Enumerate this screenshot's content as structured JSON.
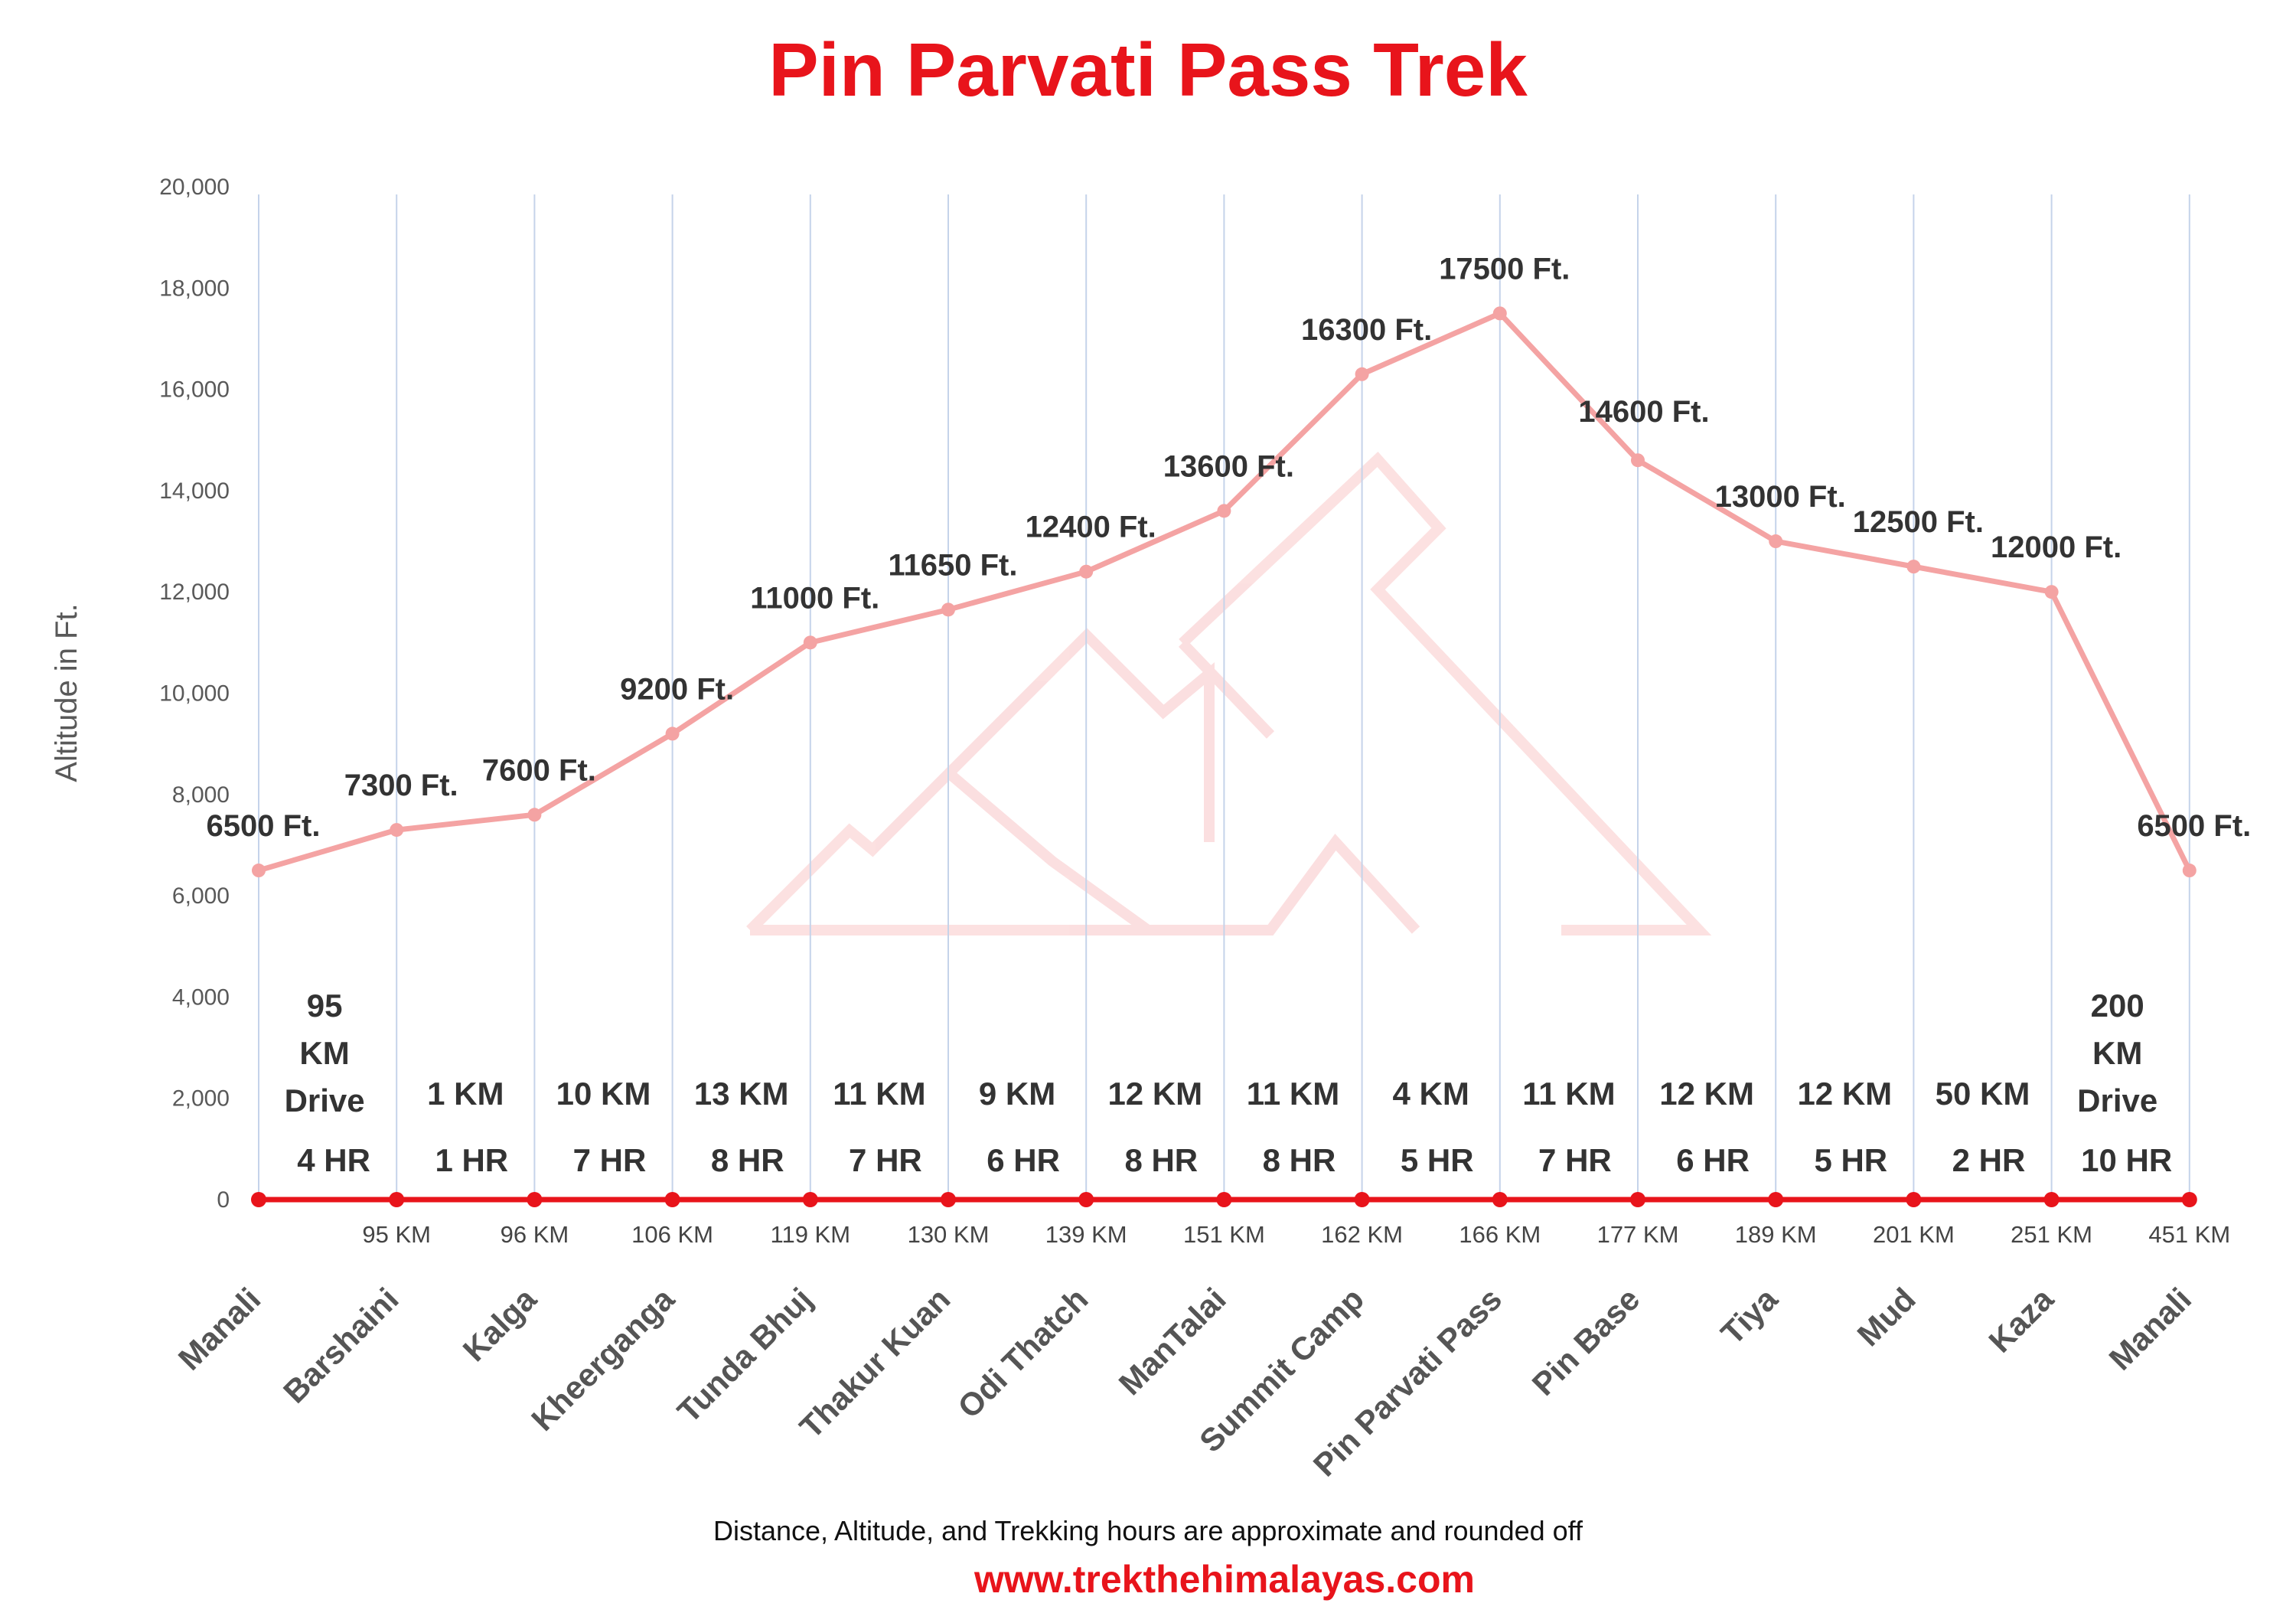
{
  "chart_data": {
    "type": "line",
    "title": "Pin Parvati Pass Trek",
    "ylabel": "Altitude in Ft.",
    "ylim": [
      0,
      20000
    ],
    "yticks": [
      "0",
      "2,000",
      "4,000",
      "6,000",
      "8,000",
      "10,000",
      "12,000",
      "14,000",
      "16,000",
      "18,000",
      "20,000"
    ],
    "grid": "vertical",
    "categories": [
      "Manali",
      "Barshaini",
      "Kalga",
      "Kheerganga",
      "Tunda Bhuj",
      "Thakur Kuan",
      "Odi Thatch",
      "ManTalai",
      "Summit Camp",
      "Pin Parvati Pass",
      "Pin Base",
      "Tiya",
      "Mud",
      "Kaza",
      "Manali"
    ],
    "values": [
      6500,
      7300,
      7600,
      9200,
      11000,
      11650,
      12400,
      13600,
      16300,
      17500,
      14600,
      13000,
      12500,
      12000,
      6500
    ],
    "value_labels": [
      "6500 Ft.",
      "7300 Ft.",
      "7600 Ft.",
      "9200 Ft.",
      "11000 Ft.",
      "11650 Ft.",
      "12400 Ft.",
      "13600 Ft.",
      "16300 Ft.",
      "17500 Ft.",
      "14600 Ft.",
      "13000 Ft.",
      "12500 Ft.",
      "12000 Ft.",
      "6500 Ft."
    ],
    "cumulative_distance": [
      "",
      "95 KM",
      "96 KM",
      "106 KM",
      "119 KM",
      "130 KM",
      "139 KM",
      "151 KM",
      "162 KM",
      "166 KM",
      "177 KM",
      "189 KM",
      "201 KM",
      "251 KM",
      "451 KM"
    ],
    "segments": [
      {
        "distance": [
          "95",
          "KM",
          "Drive"
        ],
        "hours": "4 HR"
      },
      {
        "distance": [
          "1 KM"
        ],
        "hours": "1 HR"
      },
      {
        "distance": [
          "10 KM"
        ],
        "hours": "7 HR"
      },
      {
        "distance": [
          "13 KM"
        ],
        "hours": "8 HR"
      },
      {
        "distance": [
          "11 KM"
        ],
        "hours": "7 HR"
      },
      {
        "distance": [
          "9 KM"
        ],
        "hours": "6 HR"
      },
      {
        "distance": [
          "12 KM"
        ],
        "hours": "8 HR"
      },
      {
        "distance": [
          "11 KM"
        ],
        "hours": "8 HR"
      },
      {
        "distance": [
          "4 KM"
        ],
        "hours": "5 HR"
      },
      {
        "distance": [
          "11 KM"
        ],
        "hours": "7 HR"
      },
      {
        "distance": [
          "12 KM"
        ],
        "hours": "6 HR"
      },
      {
        "distance": [
          "12 KM"
        ],
        "hours": "5 HR"
      },
      {
        "distance": [
          "50 KM"
        ],
        "hours": "2 HR"
      },
      {
        "distance": [
          "200",
          "KM",
          "Drive"
        ],
        "hours": "10 HR"
      }
    ],
    "colors": {
      "altitude_line": "#f4a3a3",
      "baseline": "#e8141b",
      "title": "#e8141b",
      "grid": "#c5d3ea"
    }
  },
  "footer": {
    "note": "Distance, Altitude,  and Trekking hours are approximate and rounded  off",
    "url": "www.trekthehimalayas.com"
  }
}
